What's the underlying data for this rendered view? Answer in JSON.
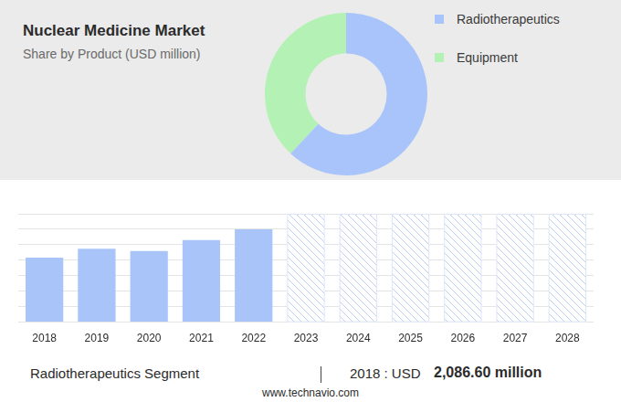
{
  "chart_data": [
    {
      "type": "doughnut",
      "title": "Nuclear Medicine Market",
      "subtitle": "Share by Product (USD million)",
      "categories": [
        "Radiotherapeutics",
        "Equipment"
      ],
      "values": [
        62,
        38
      ],
      "colors": [
        "#a9c4fa",
        "#b4f1b4"
      ],
      "legend": "right"
    },
    {
      "type": "bar",
      "categories": [
        "2018",
        "2019",
        "2020",
        "2021",
        "2022",
        "2023",
        "2024",
        "2025",
        "2026",
        "2027",
        "2028"
      ],
      "values": [
        2086.6,
        2370,
        2300,
        2650,
        3000,
        null,
        null,
        null,
        null,
        null,
        null
      ],
      "color": "#a9c4f8",
      "ylim": [
        0,
        3500
      ],
      "yticks": [
        0,
        500,
        1000,
        1500,
        2000,
        2500,
        3000,
        3500
      ],
      "grid": true,
      "tick_labels": "x",
      "annotations": [
        "Radiotherapeutics Segment",
        "2018 : USD",
        "2,086.60 million",
        "www.technavio.com"
      ]
    }
  ]
}
